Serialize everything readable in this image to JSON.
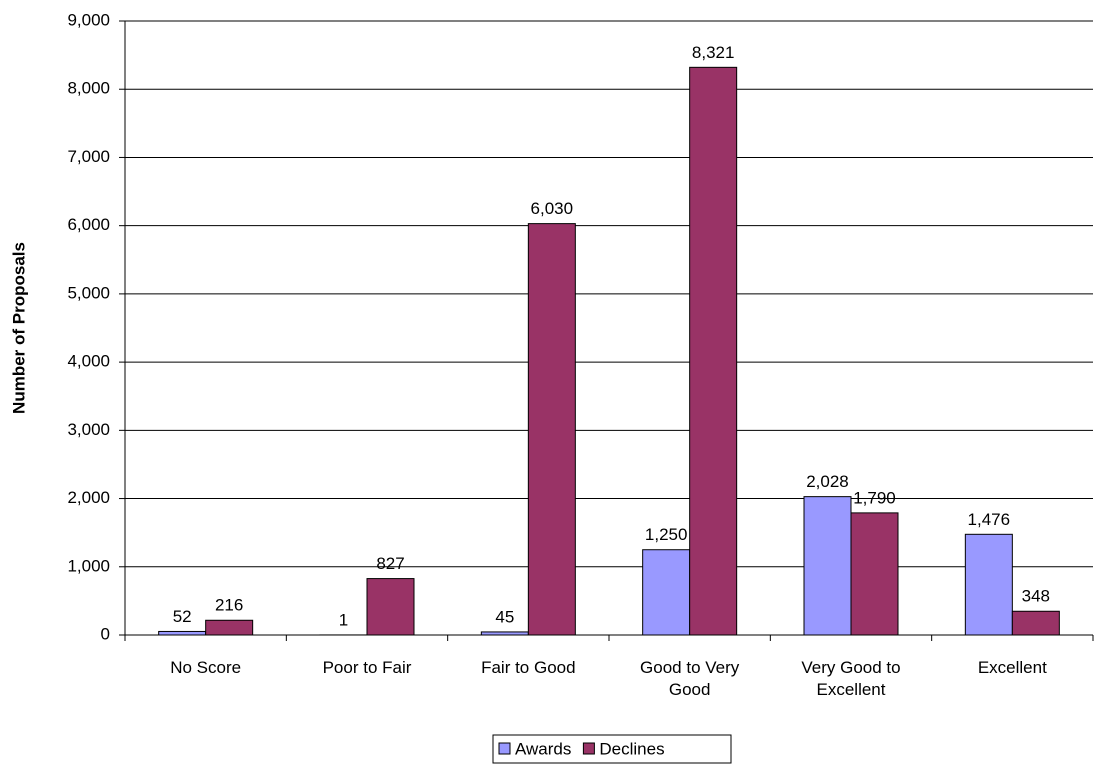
{
  "chart_data": {
    "type": "bar",
    "y_label": "Number of Proposals",
    "categories": [
      "No Score",
      "Poor to Fair",
      "Fair to Good",
      "Good to Very Good",
      "Very Good to Excellent",
      "Excellent"
    ],
    "series": [
      {
        "name": "Awards",
        "color": "#9999ff",
        "values": [
          52,
          1,
          45,
          1250,
          2028,
          1476
        ],
        "value_labels": [
          "52",
          "1",
          "45",
          "1,250",
          "2,028",
          "1,476"
        ]
      },
      {
        "name": "Declines",
        "color": "#993366",
        "values": [
          216,
          827,
          6030,
          8321,
          1790,
          348
        ],
        "value_labels": [
          "216",
          "827",
          "6,030",
          "8,321",
          "1,790",
          "348"
        ]
      }
    ],
    "ylim": [
      0,
      9000
    ],
    "yticks": [
      0,
      {
        "value": 1000,
        "label": "1,000"
      },
      {
        "value": 2000,
        "label": "2,000"
      },
      {
        "value": 3000,
        "label": "3,000"
      },
      {
        "value": 4000,
        "label": "4,000"
      },
      {
        "value": 5000,
        "label": "5,000"
      },
      {
        "value": 6000,
        "label": "6,000"
      },
      {
        "value": 7000,
        "label": "7,000"
      },
      {
        "value": 8000,
        "label": "8,000"
      },
      {
        "value": 9000,
        "label": "9,000"
      }
    ],
    "grid": true,
    "legend": "bottom"
  }
}
